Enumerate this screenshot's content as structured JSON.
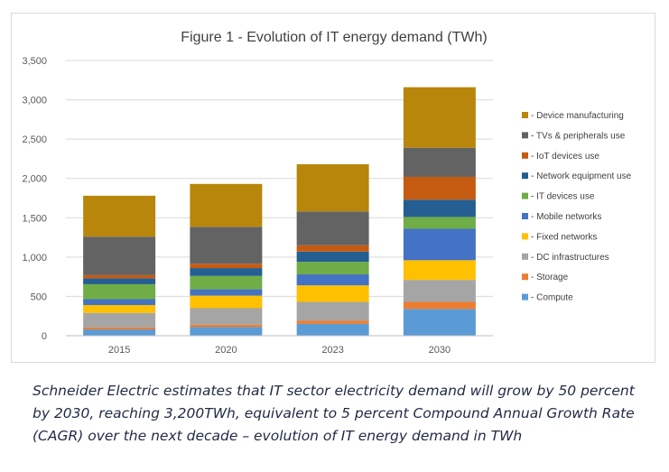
{
  "chart_data": {
    "type": "bar",
    "stacked": true,
    "title": "Figure 1 - Evolution of IT energy demand (TWh)",
    "xlabel": "",
    "ylabel": "",
    "ylim": [
      0,
      3500
    ],
    "yticks": [
      0,
      500,
      1000,
      1500,
      2000,
      2500,
      3000,
      3500
    ],
    "ytick_labels": [
      "0",
      "500",
      "1,000",
      "1,500",
      "2,000",
      "2,500",
      "3,000",
      "3,500"
    ],
    "grid": true,
    "legend_position": "right",
    "categories": [
      "2015",
      "2020",
      "2023",
      "2030"
    ],
    "series": [
      {
        "name": "- Compute",
        "color": "#5b9bd5",
        "values": [
          80,
          110,
          150,
          340
        ]
      },
      {
        "name": "- Storage",
        "color": "#ed7d31",
        "values": [
          25,
          30,
          40,
          90
        ]
      },
      {
        "name": "- DC infrastructures",
        "color": "#a5a5a5",
        "values": [
          185,
          210,
          240,
          280
        ]
      },
      {
        "name": "- Fixed networks",
        "color": "#ffc000",
        "values": [
          100,
          160,
          210,
          250
        ]
      },
      {
        "name": "- Mobile networks",
        "color": "#4472c4",
        "values": [
          75,
          80,
          140,
          400
        ]
      },
      {
        "name": "- IT devices use",
        "color": "#70ad47",
        "values": [
          190,
          170,
          160,
          150
        ]
      },
      {
        "name": "- Network equipment use",
        "color": "#255e91",
        "values": [
          75,
          100,
          130,
          220
        ]
      },
      {
        "name": "- IoT devices use",
        "color": "#c55a11",
        "values": [
          40,
          55,
          80,
          290
        ]
      },
      {
        "name": "- TVs & peripherals use",
        "color": "#636363",
        "values": [
          490,
          470,
          430,
          370
        ]
      },
      {
        "name": "- Device manufacturing",
        "color": "#b8860b",
        "values": [
          520,
          545,
          600,
          770
        ]
      }
    ]
  },
  "caption": "Schneider Electric estimates that IT sector electricity demand will grow by 50 percent by 2030, reaching 3,200TWh, equivalent to 5 percent Compound Annual Growth Rate (CAGR) over the next decade – evolution of IT energy demand in TWh"
}
